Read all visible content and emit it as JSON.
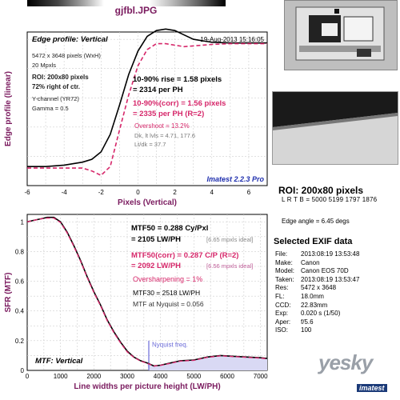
{
  "title": "gjfbl.JPG",
  "right_panel": {
    "roi_title": "ROI: 200x80 pixels",
    "lrtb": "L R T B = 5000 5199 1797 1876",
    "edge_angle": "Edge angle = 6.45 degs",
    "exif_title": "Selected EXIF data",
    "exif": [
      {
        "k": "File:",
        "v": "2013:08:19 13:53:48"
      },
      {
        "k": "Make:",
        "v": "Canon"
      },
      {
        "k": "Model:",
        "v": "Canon EOS 70D"
      },
      {
        "k": "Taken:",
        "v": "2013:08:19 13:53:47"
      },
      {
        "k": "Res:",
        "v": "5472 x 3648"
      },
      {
        "k": "FL:",
        "v": "18.0mm"
      },
      {
        "k": "CCD:",
        "v": "22.83mm"
      },
      {
        "k": "Exp:",
        "v": "0.020 s  (1/50)"
      },
      {
        "k": "Aper:",
        "v": "f/5.6"
      },
      {
        "k": "ISO:",
        "v": "100"
      }
    ],
    "watermark": "yesky",
    "watermark_sub": "imatest"
  },
  "colors": {
    "black": "#000000",
    "corrected": "#d6276a",
    "purple": "#7a1a5e",
    "blue": "#1f2fae",
    "nyquist": "#6b6bd8"
  },
  "chart_data": [
    {
      "type": "line",
      "title": "Edge profile: Vertical",
      "timestamp": "19-Aug-2013 15:16:05",
      "xlabel": "Pixels (Vertical)",
      "ylabel": "Edge profile (linear)",
      "xlim": [
        -6,
        7
      ],
      "x_ticks": [
        "-6",
        "-4",
        "-2",
        "0",
        "2",
        "4",
        "6"
      ],
      "ylim": [
        0,
        1.05
      ],
      "grid": true,
      "info": [
        "5472 x 3648 pixels (WxH)",
        "20 Mpxls",
        "ROI: 200x80 pixels",
        "72% right of ctr.",
        "Y-channel  (YR72)",
        "Gamma = 0.5"
      ],
      "annotations": {
        "rise": "10-90% rise = 1.58 pixels",
        "rise_ph": "= 2314 per PH",
        "corr": "10-90%(corr) = 1.56 pixels",
        "corr_ph": "= 2335 per PH  (R=2)",
        "overshoot": "Overshoot = 13.2%",
        "dk": "Dk, lt lvls = 4.71, 177.6",
        "ltdk": "Lt/dk = 37.7",
        "version": "Imatest 2.2.3 Pro"
      },
      "series": [
        {
          "x": [
            -6,
            -5,
            -4,
            -3,
            -2.5,
            -2,
            -1.5,
            -1,
            -0.5,
            0,
            0.5,
            1,
            1.5,
            2,
            2.5,
            3,
            3.5,
            4,
            5,
            6,
            7
          ],
          "values": [
            0.13,
            0.13,
            0.14,
            0.16,
            0.18,
            0.23,
            0.35,
            0.55,
            0.76,
            0.92,
            1.02,
            1.06,
            1.07,
            1.06,
            1.03,
            1.0,
            0.99,
            0.98,
            0.975,
            0.975,
            0.975
          ]
        },
        {
          "name": "corr",
          "x": [
            -6,
            -5,
            -4,
            -3,
            -2.5,
            -2,
            -1.5,
            -1,
            -0.5,
            0,
            0.5,
            1,
            1.5,
            2,
            2.5,
            3,
            3.5,
            4,
            5,
            6,
            7
          ],
          "values": [
            0.12,
            0.12,
            0.12,
            0.12,
            0.1,
            0.07,
            0.13,
            0.38,
            0.62,
            0.82,
            0.93,
            0.97,
            0.97,
            0.96,
            0.95,
            0.955,
            0.96,
            0.965,
            0.97,
            0.97,
            0.97
          ]
        }
      ]
    },
    {
      "type": "line",
      "title": "MTF: Vertical",
      "xlabel": "Line widths per picture height (LW/PH)",
      "ylabel": "SFR (MTF)",
      "xlim": [
        0,
        7200
      ],
      "x_ticks": [
        "0",
        "1000",
        "2000",
        "3000",
        "4000",
        "5000",
        "6000",
        "7000"
      ],
      "ylim": [
        0,
        1.05
      ],
      "y_ticks": [
        "0",
        "0.2",
        "0.4",
        "0.6",
        "0.8",
        "1"
      ],
      "grid": true,
      "nyquist_x": 3648,
      "nyquist_label": "Nyquist freq.",
      "annotations": {
        "mtf50": "MTF50 = 0.288 Cy/Pxl",
        "mtf50_lw": "= 2105 LW/PH",
        "mtf50_ideal": "[6.65 mpxls ideal]",
        "mtf50c": "MTF50(corr) = 0.287 C/P  (R=2)",
        "mtf50c_lw": "= 2092 LW/PH",
        "mtf50c_ideal": "[6.56 mpxls ideal]",
        "oversharp": "Oversharpening = 1%",
        "mtf30": "MTF30 = 2518 LW/PH",
        "mtf_nyq": "MTF at Nyquist = 0.056"
      },
      "series": [
        {
          "x": [
            0,
            200,
            400,
            600,
            800,
            1000,
            1200,
            1400,
            1600,
            1800,
            2000,
            2200,
            2400,
            2600,
            2800,
            3000,
            3200,
            3400,
            3600,
            3800,
            4000,
            4300,
            4600,
            5000,
            5400,
            5800,
            6200,
            6600,
            7000,
            7200
          ],
          "values": [
            1.0,
            1.01,
            1.02,
            1.03,
            1.03,
            1.0,
            0.93,
            0.84,
            0.74,
            0.63,
            0.53,
            0.44,
            0.34,
            0.26,
            0.19,
            0.13,
            0.09,
            0.065,
            0.05,
            0.03,
            0.035,
            0.05,
            0.065,
            0.07,
            0.09,
            0.1,
            0.095,
            0.09,
            0.085,
            0.08
          ]
        },
        {
          "name": "corr",
          "x": [
            0,
            200,
            400,
            600,
            800,
            1000,
            1200,
            1400,
            1600,
            1800,
            2000,
            2200,
            2400,
            2600,
            2800,
            3000,
            3200,
            3400,
            3600,
            3800,
            4000,
            4300,
            4600,
            5000,
            5400,
            5800,
            6200,
            6600,
            7000,
            7200
          ],
          "values": [
            1.0,
            1.01,
            1.02,
            1.025,
            1.025,
            0.995,
            0.925,
            0.835,
            0.735,
            0.625,
            0.525,
            0.435,
            0.335,
            0.255,
            0.185,
            0.125,
            0.088,
            0.063,
            0.048,
            0.029,
            0.034,
            0.048,
            0.063,
            0.068,
            0.088,
            0.098,
            0.093,
            0.088,
            0.083,
            0.078
          ]
        }
      ]
    }
  ]
}
